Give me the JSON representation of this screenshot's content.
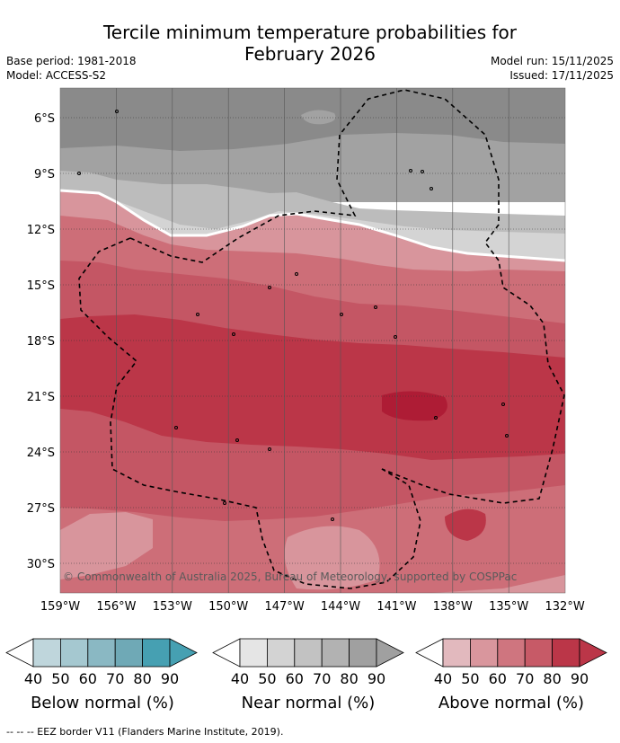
{
  "title_line1": "Tercile minimum temperature probabilities for",
  "title_line2": "February 2026",
  "meta": {
    "base_period": "Base period: 1981-2018",
    "model": "Model: ACCESS-S2",
    "model_run": "Model run: 15/11/2025",
    "issued": "Issued: 17/11/2025"
  },
  "copyright": "© Commonwealth of Australia 2025, Bureau of Meteorology, supported by COSPPac",
  "lat_labels": [
    "6°S",
    "9°S",
    "12°S",
    "15°S",
    "18°S",
    "21°S",
    "24°S",
    "27°S",
    "30°S"
  ],
  "lon_labels": [
    "159°W",
    "156°W",
    "153°W",
    "150°W",
    "147°W",
    "144°W",
    "141°W",
    "138°W",
    "135°W",
    "132°W"
  ],
  "legends": [
    {
      "name": "below",
      "label": "Below normal (%)",
      "ticks": [
        "40",
        "50",
        "60",
        "70",
        "80",
        "90"
      ],
      "colors": [
        "#bfd6dc",
        "#a5c8d0",
        "#8ab8c3",
        "#6fa9b6",
        "#46a0b2"
      ]
    },
    {
      "name": "near",
      "label": "Near normal (%)",
      "ticks": [
        "40",
        "50",
        "60",
        "70",
        "80",
        "90"
      ],
      "colors": [
        "#e5e5e5",
        "#d3d3d3",
        "#c2c2c2",
        "#b2b2b2",
        "#a0a0a0"
      ]
    },
    {
      "name": "above",
      "label": "Above normal (%)",
      "ticks": [
        "40",
        "50",
        "60",
        "70",
        "80",
        "90"
      ],
      "colors": [
        "#e2b9be",
        "#d9969d",
        "#cf757f",
        "#c75a67",
        "#bb3648"
      ]
    }
  ],
  "map_colors": {
    "near_80": "#8a8a8a",
    "near_70": "#a2a2a2",
    "near_60": "#bcbcbc",
    "near_50": "#d4d4d4",
    "above_50": "#d8959c",
    "above_60": "#cd6e78",
    "above_70": "#c45664",
    "above_80": "#bb3648",
    "above_90": "#ae1c35"
  },
  "footnote": "--  --  -- EEZ border V11 (Flanders Marine Institute, 2019)."
}
